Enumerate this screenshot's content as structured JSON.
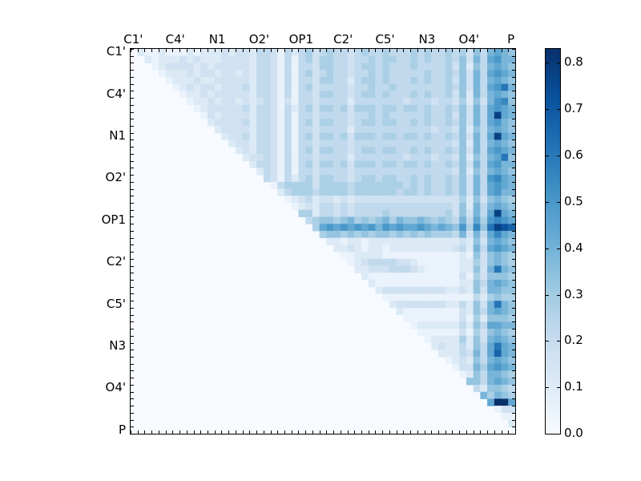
{
  "figure": {
    "background": "#ffffff",
    "frame_color": "#000000",
    "text_color": "#000000"
  },
  "chart_data": {
    "type": "heatmap",
    "title": "",
    "xlabel": "",
    "ylabel": "",
    "n": 55,
    "grid": false,
    "legend_position": "colorbar-right",
    "axis_tick_labels": [
      "C1'",
      "C4'",
      "N1",
      "O2'",
      "OP1",
      "C2'",
      "C5'",
      "N3",
      "O4'",
      "P"
    ],
    "tick_label_indices": [
      0,
      6,
      12,
      18,
      24,
      30,
      36,
      42,
      48,
      54
    ],
    "vmin": 0.0,
    "vmax": 0.83,
    "colormap": "Blues",
    "colormap_stops": [
      [
        0.0,
        "#f7fbff"
      ],
      [
        0.125,
        "#deebf7"
      ],
      [
        0.25,
        "#c6dbef"
      ],
      [
        0.375,
        "#9ecae1"
      ],
      [
        0.5,
        "#6baed6"
      ],
      [
        0.625,
        "#4292c6"
      ],
      [
        0.75,
        "#2171b5"
      ],
      [
        0.875,
        "#08519c"
      ],
      [
        1.0,
        "#08306b"
      ]
    ],
    "matrix_encoding": "one hex digit per cell (spaces ignored); cell value = digit/15 * vmax; rows listed top-to-bottom, 55 columns left-to-right; lower triangle and diagonal are 0",
    "matrix_rows": [
      "021121 112122 232332 443142 453454 434544 544454 544545 364787 6",
      "002122 232322 233332 443141 453554 434454 554454 544546 374897 7",
      "000123 333232 333332 443141 443554 434554 544454 444536 264787 6",
      "000012 223233 233232 443141 453454 434454 544444 544546 374898 7",
      "000001 222322 333332 443141 443554 424554 544454 544536 374787 6",
      "000000 123233 233342 443141 453444 434454 454444 444546 37489b 7",
      "000000 012232 333332 443141 443554 434554 544454 544536 274787 6",
      "000000 001223 233232 343131 443444 424444 444344 434435 26379a 6",
      "000000 000123 333342 443142 453554 535554 554554 544546 374898 7",
      "000000 000013 233332 443141 443444 434454 544444 544536 3748e8 7",
      "000000 000002 333342 443141 453554 434554 554454 544546 374897 6",
      "000000 000000 233332 443141 443444 424444 444444 434436 264787 6",
      "000000 000000 023342 443141 453554 535554 554554 544546 3748e8 7",
      "000000 000000 002332 443141 443444 434444 444444 444436 274787 6",
      "000000 000000 000232 443141 453554 434554 554454 544546 374898 7",
      "000000 000000 000023 343141 443444 424444 444344 434436 26478b 6",
      "000000 000000 000002 443141 453554 535554 554554 544546 374897 7",
      "000000 000000 000000 243141 443444 434444 444444 444436 264787 6",
      "000000 000000 000000 043142 453554 434554 554454 544546 3749a8 7",
      "000000 000000 000000 001455 553555 545555 555454 544546 374898 7",
      "000000 000000 000000 000245 554555 545555 554554 544546 374897 7",
      "000000 000000 000000 000012 342332 323333 333333 333335 263676 5",
      "000000 000000 000000 000001 232443 434444 444444 444436 274787 6",
      "000000 000000 000000 000000 552443 434444 544444 444536 3748e8 7",
      "000000 000000 000000 000000 045665 675656 757667 656547 4859a9 8",
      "000000 000000 000000 000000 005898 989897 989889 878769 5a6bed c",
      "000000 000000 000000 000000 000566 565656 656565 655547 3748a8 7",
      "000000 000000 000000 000000 000022 122122 222222 222223 263787 6",
      "000000 000000 000000 000000 000002 232122 122222 222234 274898 7",
      "000000 000000 000000 000000 000000 112222 111111 111112 163676 5",
      "000000 000000 000000 000000 000000 012344 443321 111112 253676 5",
      "000000 000000 000000 000000 000000 002233 344432 111112 2637b7 6",
      "000000 000000 000000 000000 000000 000211 111111 111113 153666 5",
      "000000 000000 000000 000000 000000 000021 111111 111112 264787 6",
      "000000 000000 000000 000000 000000 000002 333333 333223 263776 6",
      "000000 000000 000000 000000 000000 000000 111111 111111 142565 5",
      "000000 000000 000000 000000 000000 000000 023333 333224 2637b7 6",
      "000000 000000 000000 000000 000000 000000 002111 111113 264787 6",
      "000000 000000 000000 000000 000000 000000 000111 111113 152666 5",
      "000000 000000 000000 000000 000000 000000 000012 222224 264887 7",
      "000000 000000 000000 000000 000000 000000 000001 111113 153676 5",
      "000000 000000 000000 000000 000000 000000 000000 122225 263787 6",
      "000000 000000 000000 000000 000000 000000 000000 023224 2648b8 7",
      "000000 000000 000000 000000 000000 000000 000000 002224 3748c8 7",
      "000000 000000 000000 000000 000000 000000 000000 000123 264787 6",
      "000000 000000 000000 000000 000000 000000 000000 000013 375898 7",
      "000000 000000 000000 000000 000000 000000 000000 000001 264776 5",
      "000000 000000 000000 000000 000000 000000 000000 000000 664787 6",
      "000000 000000 000000 000000 000000 000000 000000 000000 042665 4",
      "000000 000000 000000 000000 000000 000000 000000 000000 007576 5",
      "000000 000000 000000 000000 000000 000000 000000 000000 0008ff 8",
      "000000 000000 000000 000000 000000 000000 000000 000000 000013 3",
      "000000 000000 000000 000000 000000 000000 000000 000000 000001 1",
      "000000 000000 000000 000000 000000 000000 000000 000000 000000 2",
      "000000 000000 000000 000000 000000 000000 000000 000000 000000 0"
    ],
    "colorbar": {
      "tick_labels": [
        "0.0",
        "0.1",
        "0.2",
        "0.3",
        "0.4",
        "0.5",
        "0.6",
        "0.7",
        "0.8"
      ],
      "tick_values": [
        0.0,
        0.1,
        0.2,
        0.3,
        0.4,
        0.5,
        0.6,
        0.7,
        0.8
      ]
    }
  }
}
